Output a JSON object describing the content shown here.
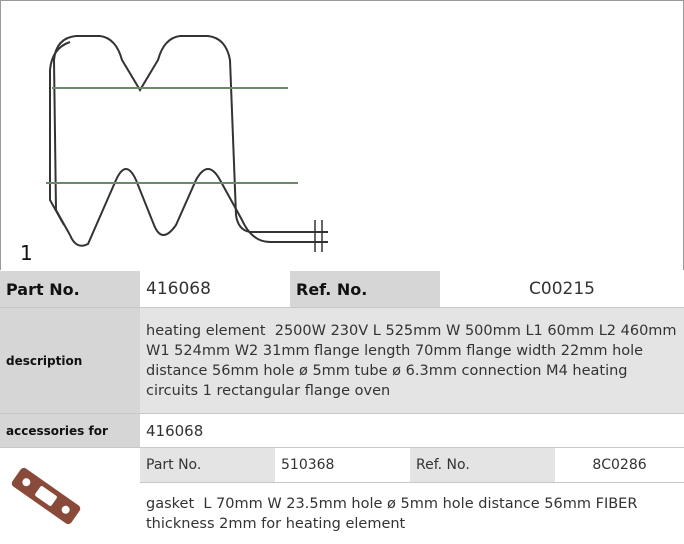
{
  "figure_label": "1",
  "part_row": {
    "part_no_label": "Part No.",
    "part_no": "416068",
    "ref_no_label": "Ref. No.",
    "ref_no": "C00215"
  },
  "description": {
    "label": "description",
    "text": "heating element  2500W 230V L 525mm W 500mm L1 60mm L2 460mm W1 524mm W2 31mm flange length 70mm flange width 22mm hole distance 56mm hole ø 5mm tube ø 6.3mm connection M4 heating circuits 1 rectangular flange oven"
  },
  "accessories": {
    "label": "accessories for",
    "value": "416068",
    "items": [
      {
        "part_no_label": "Part No.",
        "part_no": "510368",
        "ref_no_label": "Ref. No.",
        "ref_no": "8C0286",
        "text": "gasket  L 70mm W 23.5mm hole ø 5mm hole distance 56mm FIBER thickness 2mm for heating element"
      }
    ]
  }
}
